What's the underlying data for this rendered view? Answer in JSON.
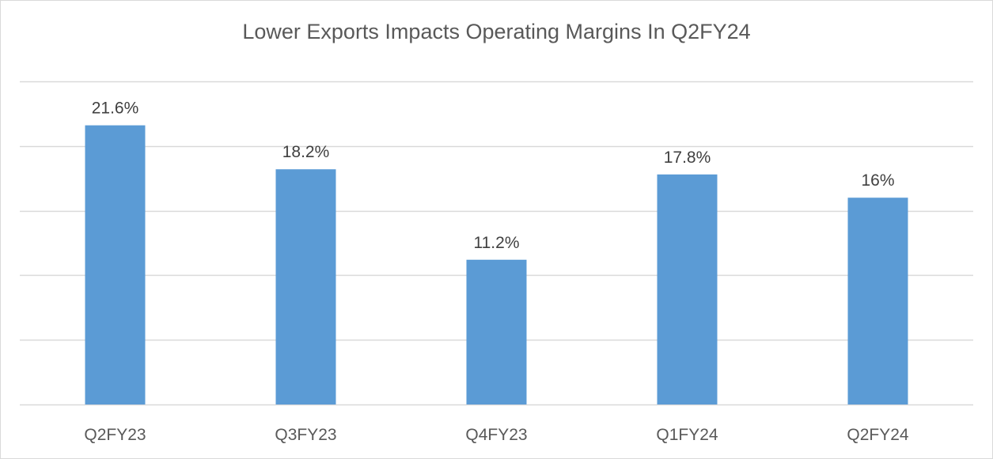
{
  "chart_data": {
    "type": "bar",
    "title": "Lower Exports Impacts Operating Margins In Q2FY24",
    "categories": [
      "Q2FY23",
      "Q3FY23",
      "Q4FY23",
      "Q1FY24",
      "Q2FY24"
    ],
    "values": [
      21.6,
      18.2,
      11.2,
      17.8,
      16
    ],
    "data_labels": [
      "21.6%",
      "18.2%",
      "11.2%",
      "17.8%",
      "16%"
    ],
    "ylim": [
      0,
      25
    ],
    "y_gridline_step": 5,
    "y_tick_labels_shown": false,
    "grid": true,
    "legend": "none",
    "bar_color": "#5b9bd5",
    "grid_color": "#d9d9d9"
  }
}
